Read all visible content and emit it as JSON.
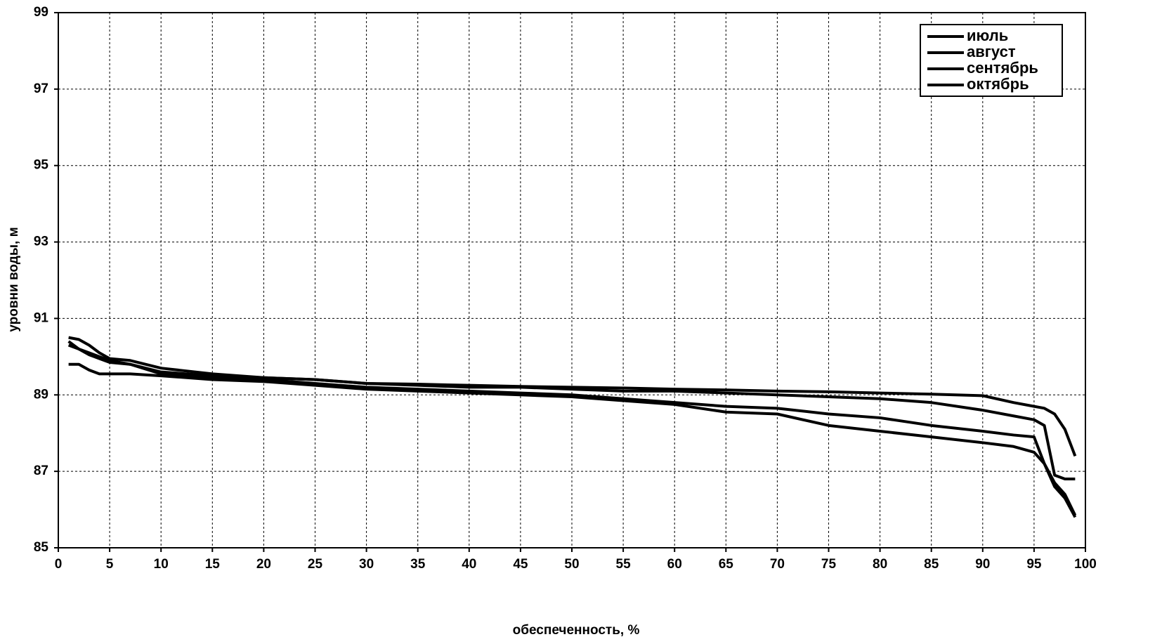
{
  "chart_data": {
    "type": "line",
    "x_label": "обеспеченность, %",
    "y_label": "уровни воды, м",
    "x": [
      1,
      2,
      3,
      4,
      5,
      7,
      10,
      15,
      20,
      25,
      30,
      35,
      40,
      45,
      50,
      55,
      60,
      65,
      70,
      75,
      80,
      85,
      90,
      93,
      95,
      96,
      97,
      98,
      99
    ],
    "series": [
      {
        "name": "июль",
        "color": "#000000",
        "values": [
          90.5,
          90.45,
          90.3,
          90.1,
          89.95,
          89.9,
          89.7,
          89.55,
          89.45,
          89.4,
          89.3,
          89.28,
          89.25,
          89.22,
          89.2,
          89.18,
          89.15,
          89.13,
          89.1,
          89.08,
          89.05,
          89.02,
          88.98,
          88.8,
          88.7,
          88.65,
          88.5,
          88.1,
          87.4
        ]
      },
      {
        "name": "август",
        "color": "#000000",
        "values": [
          90.3,
          90.2,
          90.05,
          89.95,
          89.85,
          89.8,
          89.6,
          89.5,
          89.45,
          89.4,
          89.3,
          89.25,
          89.2,
          89.2,
          89.15,
          89.1,
          89.1,
          89.05,
          89.0,
          88.95,
          88.9,
          88.8,
          88.6,
          88.45,
          88.35,
          88.2,
          86.9,
          86.8,
          86.8
        ]
      },
      {
        "name": "сентябрь",
        "color": "#000000",
        "values": [
          90.4,
          90.2,
          90.1,
          90.0,
          89.9,
          89.8,
          89.55,
          89.45,
          89.4,
          89.3,
          89.2,
          89.15,
          89.1,
          89.05,
          89.0,
          88.9,
          88.8,
          88.7,
          88.65,
          88.5,
          88.4,
          88.2,
          88.05,
          87.95,
          87.9,
          87.2,
          86.7,
          86.4,
          85.85
        ]
      },
      {
        "name": "октябрь",
        "color": "#000000",
        "values": [
          89.8,
          89.8,
          89.65,
          89.55,
          89.55,
          89.55,
          89.5,
          89.4,
          89.35,
          89.25,
          89.15,
          89.1,
          89.05,
          89.0,
          88.95,
          88.85,
          88.75,
          88.55,
          88.5,
          88.2,
          88.05,
          87.9,
          87.75,
          87.65,
          87.5,
          87.2,
          86.6,
          86.3,
          85.8
        ]
      }
    ],
    "xlim": [
      0,
      100
    ],
    "xticks": [
      0,
      5,
      10,
      15,
      20,
      25,
      30,
      35,
      40,
      45,
      50,
      55,
      60,
      65,
      70,
      75,
      80,
      85,
      90,
      95,
      100
    ],
    "ylim": [
      85,
      99
    ],
    "yticks": [
      85,
      87,
      89,
      91,
      93,
      95,
      97,
      99
    ],
    "grid": true,
    "legend": "upper-right"
  }
}
